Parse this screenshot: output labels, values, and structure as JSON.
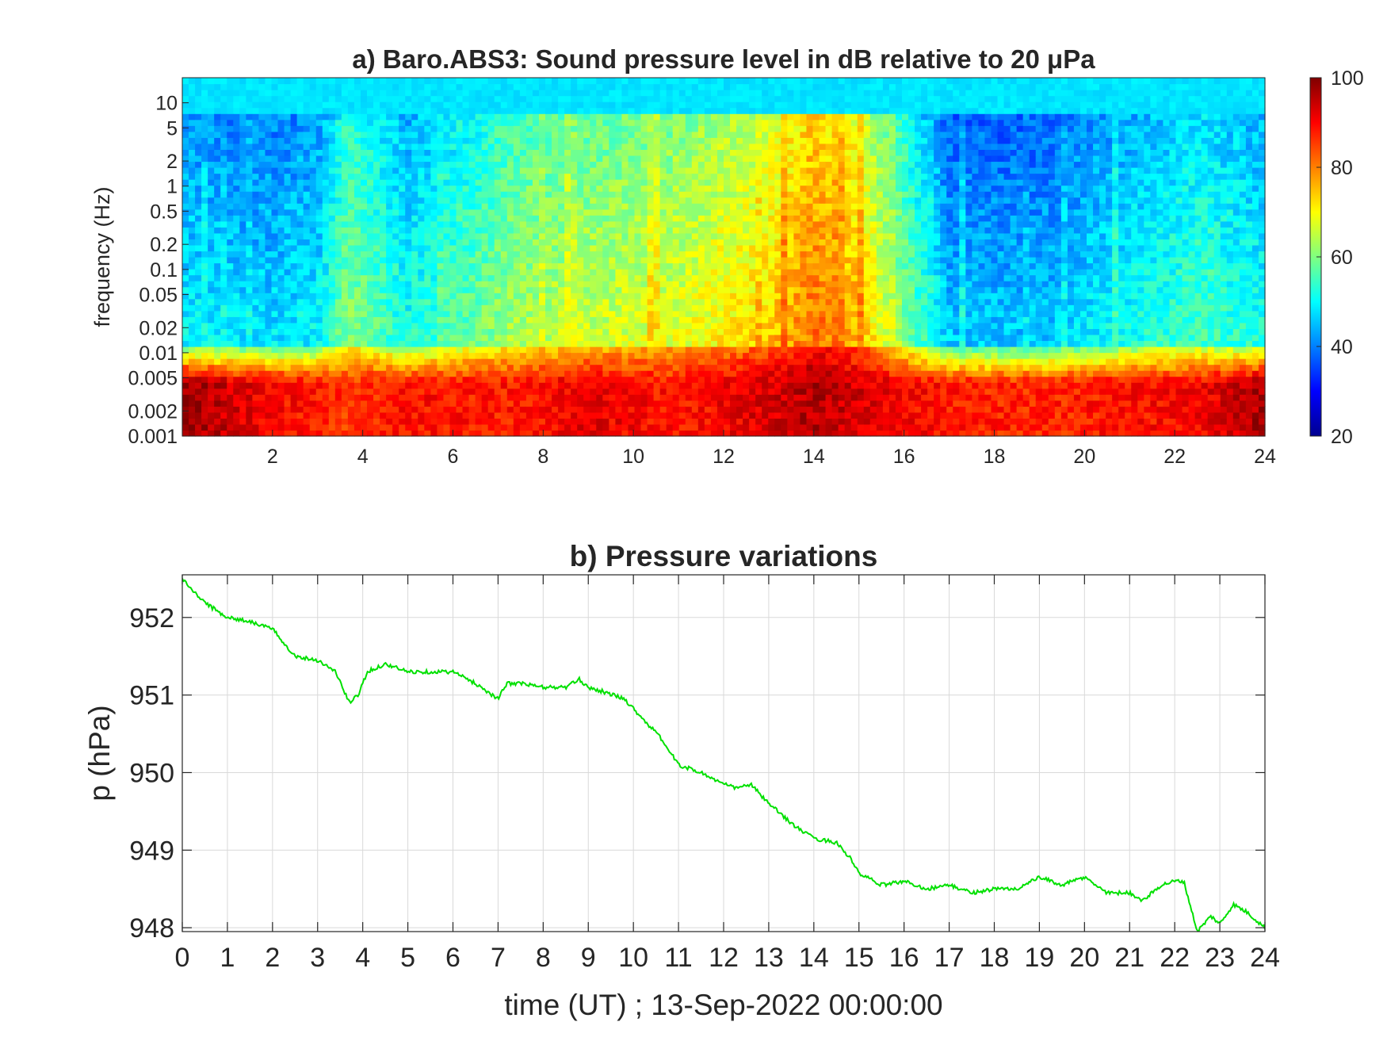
{
  "chart_data": [
    {
      "type": "heatmap",
      "title": "a) Baro.ABS3: Sound pressure level in dB relative to 20 μPa",
      "xlabel": "",
      "ylabel": "frequency (Hz)",
      "y_scale": "log",
      "xlim": [
        0,
        24
      ],
      "ylim": [
        0.001,
        20
      ],
      "x_ticks": [
        "2",
        "4",
        "6",
        "8",
        "10",
        "12",
        "14",
        "16",
        "18",
        "20",
        "22",
        "24"
      ],
      "y_ticks": [
        "10",
        "5",
        "2",
        "1",
        "0.5",
        "0.2",
        "0.1",
        "0.05",
        "0.02",
        "0.01",
        "0.005",
        "0.002",
        "0.001"
      ],
      "colorbar": {
        "colormap": "jet",
        "range": [
          20,
          100
        ],
        "ticks": [
          "100",
          "80",
          "60",
          "40",
          "20"
        ]
      },
      "features": {
        "time_h": [
          0,
          2,
          3,
          3.7,
          5,
          7.5,
          9,
          11,
          13,
          14,
          15,
          17,
          19,
          22.5,
          24
        ],
        "low_freq_level_db": [
          98,
          90,
          88,
          86,
          89,
          88,
          92,
          88,
          93,
          96,
          93,
          88,
          87,
          90,
          97
        ],
        "broadband_level_db": [
          50,
          48,
          50,
          62,
          52,
          64,
          66,
          68,
          74,
          82,
          76,
          46,
          46,
          56,
          52
        ]
      },
      "grid": false
    },
    {
      "type": "line",
      "title": "b) Pressure variations",
      "xlabel": "time (UT) ; 13-Sep-2022 00:00:00",
      "ylabel": "p (hPa)",
      "xlim": [
        0,
        24
      ],
      "ylim": [
        947.95,
        952.55
      ],
      "x_ticks": [
        "0",
        "1",
        "2",
        "3",
        "4",
        "5",
        "6",
        "7",
        "8",
        "9",
        "10",
        "11",
        "12",
        "13",
        "14",
        "15",
        "16",
        "17",
        "18",
        "19",
        "20",
        "21",
        "22",
        "23",
        "24"
      ],
      "y_ticks": [
        "952",
        "951",
        "950",
        "949",
        "948"
      ],
      "grid": true,
      "series": [
        {
          "color": "#00e000",
          "x": [
            0,
            0.3,
            0.6,
            1,
            1.5,
            2,
            2.5,
            3,
            3.4,
            3.7,
            3.9,
            4.1,
            4.5,
            5,
            5.5,
            6,
            6.5,
            7,
            7.2,
            7.5,
            8,
            8.5,
            8.8,
            9,
            9.3,
            9.8,
            10.2,
            10.6,
            11,
            11.5,
            12,
            12.3,
            12.6,
            13,
            13.2,
            13.6,
            14,
            14.5,
            14.8,
            15,
            15.5,
            16,
            16.5,
            17,
            17.5,
            18,
            18.5,
            19,
            19.5,
            20,
            20.5,
            21,
            21.3,
            21.7,
            22,
            22.2,
            22.5,
            22.8,
            23,
            23.3,
            23.6,
            24
          ],
          "y": [
            952.5,
            952.3,
            952.15,
            952.0,
            951.95,
            951.85,
            951.5,
            951.45,
            951.3,
            950.9,
            951.0,
            951.3,
            951.4,
            951.3,
            951.3,
            951.3,
            951.15,
            950.95,
            951.15,
            951.15,
            951.1,
            951.1,
            951.2,
            951.1,
            951.05,
            950.95,
            950.7,
            950.45,
            950.1,
            950.0,
            949.85,
            949.8,
            949.85,
            949.6,
            949.5,
            949.3,
            949.15,
            949.1,
            948.9,
            948.7,
            948.55,
            948.6,
            948.5,
            948.55,
            948.45,
            948.5,
            948.5,
            948.65,
            948.55,
            948.65,
            948.45,
            948.45,
            948.35,
            948.55,
            948.6,
            948.6,
            947.95,
            948.15,
            948.05,
            948.3,
            948.2,
            948.0
          ]
        }
      ]
    }
  ]
}
